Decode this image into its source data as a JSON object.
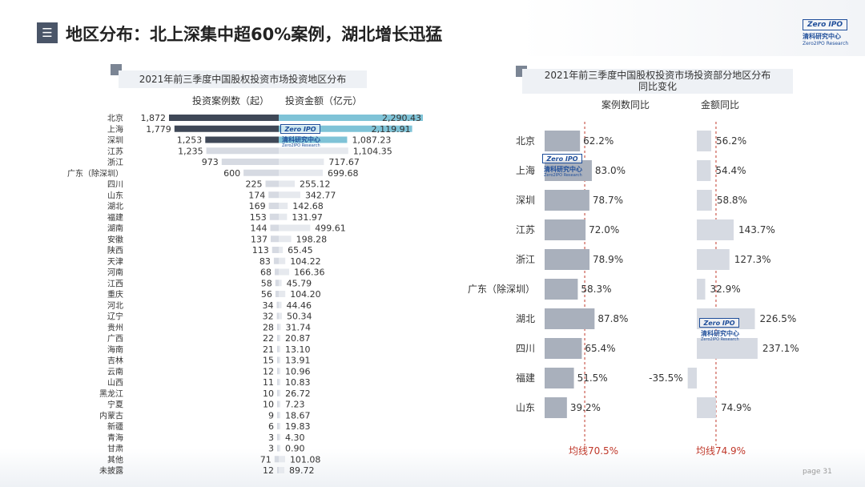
{
  "header": {
    "menu_glyph": "☰",
    "title": "地区分布：北上深集中超60%案例，湖北增长迅猛"
  },
  "logo": {
    "badge": "Zero IPO",
    "name": "清科研究中心",
    "sub": "Zero2IPO Research"
  },
  "watermark": {
    "badge": "Zero IPO",
    "name": "清科研究中心",
    "sub": "Zero2IPO Research"
  },
  "colors": {
    "accent": "#7fc3d7",
    "dark": "#3f4857",
    "mid": "#a9b0bc",
    "light": "#d6dae2",
    "lighter": "#e6e9ee",
    "avg_line": "#c0392b"
  },
  "chart_data": [
    {
      "type": "bar",
      "title": "2021年前三季度中国股权投资市场投资地区分布",
      "layout": "butterfly",
      "left_series_label": "投资案例数（起）",
      "right_series_label": "投资金额（亿元）",
      "categories": [
        "北京",
        "上海",
        "深圳",
        "江苏",
        "浙江",
        "广东（除深圳）",
        "四川",
        "山东",
        "湖北",
        "福建",
        "湖南",
        "安徽",
        "陕西",
        "天津",
        "河南",
        "江西",
        "重庆",
        "河北",
        "辽宁",
        "贵州",
        "广西",
        "海南",
        "吉林",
        "云南",
        "山西",
        "黑龙江",
        "宁夏",
        "内蒙古",
        "新疆",
        "青海",
        "甘肃",
        "其他",
        "未披露"
      ],
      "cases": [
        1872,
        1779,
        1253,
        1235,
        973,
        600,
        225,
        174,
        169,
        153,
        144,
        137,
        113,
        83,
        68,
        58,
        56,
        34,
        32,
        28,
        22,
        21,
        15,
        12,
        11,
        10,
        10,
        9,
        6,
        3,
        3,
        71,
        12
      ],
      "cases_labels": [
        "1,872",
        "1,779",
        "1,253",
        "1,235",
        "973",
        "600",
        "225",
        "174",
        "169",
        "153",
        "144",
        "137",
        "113",
        "83",
        "68",
        "58",
        "56",
        "34",
        "32",
        "28",
        "22",
        "21",
        "15",
        "12",
        "11",
        "10",
        "10",
        "9",
        "6",
        "3",
        "3",
        "71",
        "12"
      ],
      "amounts": [
        2290.43,
        2119.91,
        1087.23,
        1104.35,
        717.67,
        699.68,
        255.12,
        342.77,
        142.68,
        131.97,
        499.61,
        198.28,
        65.45,
        104.22,
        166.36,
        45.79,
        104.2,
        44.46,
        50.34,
        31.74,
        20.87,
        13.1,
        13.91,
        10.96,
        10.83,
        26.72,
        7.23,
        18.67,
        19.83,
        4.3,
        0.9,
        101.08,
        89.72
      ],
      "amounts_labels": [
        "2,290.43",
        "2,119.91",
        "1,087.23",
        "1,104.35",
        "717.67",
        "699.68",
        "255.12",
        "342.77",
        "142.68",
        "131.97",
        "499.61",
        "198.28",
        "65.45",
        "104.22",
        "166.36",
        "45.79",
        "104.20",
        "44.46",
        "50.34",
        "31.74",
        "20.87",
        "13.10",
        "13.91",
        "10.96",
        "10.83",
        "26.72",
        "7.23",
        "18.67",
        "19.83",
        "4.30",
        "0.90",
        "101.08",
        "89.72"
      ]
    },
    {
      "type": "bar",
      "title_line1": "2021年前三季度中国股权投资市场投资部分地区分布",
      "title_line2": "同比变化",
      "categories": [
        "北京",
        "上海",
        "深圳",
        "江苏",
        "浙江",
        "广东（除深圳）",
        "湖北",
        "四川",
        "福建",
        "山东"
      ],
      "series": [
        {
          "name": "案例数同比",
          "values": [
            62.2,
            83.0,
            78.7,
            72.0,
            78.9,
            58.3,
            87.8,
            65.4,
            51.5,
            39.2
          ],
          "labels": [
            "62.2%",
            "83.0%",
            "78.7%",
            "72.0%",
            "78.9%",
            "58.3%",
            "87.8%",
            "65.4%",
            "51.5%",
            "39.2%"
          ],
          "average": 70.5,
          "average_label": "均线70.5%"
        },
        {
          "name": "金额同比",
          "values": [
            56.2,
            54.4,
            58.8,
            143.7,
            127.3,
            32.9,
            226.5,
            237.1,
            -35.5,
            74.9
          ],
          "labels": [
            "56.2%",
            "54.4%",
            "58.8%",
            "143.7%",
            "127.3%",
            "32.9%",
            "226.5%",
            "237.1%",
            "-35.5%",
            "74.9%"
          ],
          "average": 74.9,
          "average_label": "均线74.9%"
        }
      ]
    }
  ],
  "footer": {
    "page": "page  31"
  }
}
